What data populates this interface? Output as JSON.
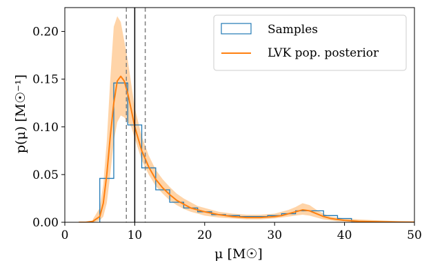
{
  "chart_data": {
    "type": "line",
    "xlabel": "μ [M☉]",
    "ylabel": "p(μ) [M☉⁻¹]",
    "xlim": [
      0,
      50
    ],
    "ylim": [
      0,
      0.225
    ],
    "xticks": [
      0,
      10,
      20,
      30,
      40,
      50
    ],
    "xtick_labels": [
      "0",
      "10",
      "20",
      "30",
      "40",
      "50"
    ],
    "yticks": [
      0.0,
      0.05,
      0.1,
      0.15,
      0.2
    ],
    "ytick_labels": [
      "0.00",
      "0.05",
      "0.10",
      "0.15",
      "0.20"
    ],
    "grid": false,
    "legend_position": "top-right",
    "legend": [
      "Samples",
      "LVK pop. posterior"
    ],
    "colors": {
      "samples": "#1f77b4",
      "posterior": "#ff7f0e",
      "band": "#ffcc99",
      "median_line": "#000000",
      "interval_lines": "#7f7f7f"
    },
    "histogram": {
      "name": "Samples",
      "bin_edges": [
        5,
        7,
        9,
        11,
        13,
        15,
        17,
        19,
        21,
        23,
        25,
        27,
        29,
        31,
        33,
        35,
        37,
        39,
        41,
        43
      ],
      "values": [
        0.046,
        0.146,
        0.102,
        0.057,
        0.034,
        0.021,
        0.015,
        0.011,
        0.008,
        0.007,
        0.006,
        0.006,
        0.007,
        0.009,
        0.012,
        0.012,
        0.007,
        0.004,
        0.001
      ]
    },
    "posterior_median": {
      "name": "LVK pop. posterior",
      "x": [
        2,
        3,
        4,
        5,
        5.5,
        6,
        6.5,
        7,
        7.5,
        8,
        8.5,
        9,
        9.5,
        10,
        11,
        12,
        13,
        14,
        15,
        16,
        17,
        18,
        19,
        20,
        22,
        24,
        26,
        28,
        30,
        31,
        32,
        33,
        34,
        35,
        36,
        37,
        38,
        39,
        40,
        42,
        45,
        50
      ],
      "y": [
        0.0,
        0.0,
        0.001,
        0.006,
        0.02,
        0.05,
        0.09,
        0.125,
        0.148,
        0.153,
        0.148,
        0.135,
        0.118,
        0.1,
        0.075,
        0.058,
        0.045,
        0.036,
        0.029,
        0.023,
        0.019,
        0.015,
        0.013,
        0.011,
        0.008,
        0.006,
        0.005,
        0.005,
        0.006,
        0.007,
        0.009,
        0.011,
        0.013,
        0.012,
        0.009,
        0.006,
        0.004,
        0.003,
        0.002,
        0.001,
        0.0005,
        0.0001
      ]
    },
    "posterior_band": {
      "x": [
        4,
        5,
        5.5,
        6,
        6.5,
        7,
        7.5,
        8,
        8.5,
        9,
        9.5,
        10,
        11,
        12,
        13,
        14,
        15,
        16,
        17,
        18,
        19,
        20,
        22,
        24,
        26,
        28,
        30,
        31,
        32,
        33,
        34,
        35,
        36,
        37,
        38,
        39,
        40,
        42,
        45,
        48,
        50
      ],
      "lower": [
        0.0,
        0.002,
        0.006,
        0.02,
        0.05,
        0.085,
        0.105,
        0.112,
        0.11,
        0.105,
        0.1,
        0.088,
        0.065,
        0.05,
        0.038,
        0.03,
        0.023,
        0.018,
        0.014,
        0.011,
        0.009,
        0.007,
        0.005,
        0.004,
        0.003,
        0.003,
        0.004,
        0.005,
        0.006,
        0.007,
        0.008,
        0.007,
        0.005,
        0.003,
        0.002,
        0.001,
        0.001,
        0.0,
        0.0,
        0.0,
        0.0
      ],
      "upper": [
        0.003,
        0.015,
        0.04,
        0.085,
        0.15,
        0.205,
        0.216,
        0.21,
        0.19,
        0.17,
        0.145,
        0.12,
        0.09,
        0.07,
        0.055,
        0.045,
        0.037,
        0.03,
        0.025,
        0.021,
        0.017,
        0.015,
        0.011,
        0.009,
        0.008,
        0.008,
        0.009,
        0.011,
        0.013,
        0.016,
        0.02,
        0.018,
        0.013,
        0.009,
        0.006,
        0.005,
        0.004,
        0.003,
        0.002,
        0.001,
        0.001
      ]
    },
    "vertical_lines": [
      {
        "x": 10.0,
        "style": "solid"
      },
      {
        "x": 8.8,
        "style": "dashed"
      },
      {
        "x": 11.5,
        "style": "dashed"
      }
    ]
  }
}
